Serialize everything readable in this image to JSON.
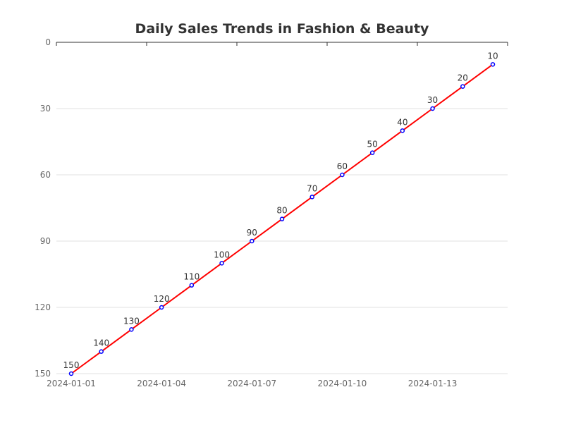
{
  "chart_data": {
    "type": "line",
    "title": "Daily Sales Trends in Fashion & Beauty",
    "xlabel": "",
    "ylabel": "",
    "x": [
      "2024-01-01",
      "2024-01-02",
      "2024-01-03",
      "2024-01-04",
      "2024-01-05",
      "2024-01-06",
      "2024-01-07",
      "2024-01-08",
      "2024-01-09",
      "2024-01-10",
      "2024-01-11",
      "2024-01-12",
      "2024-01-13",
      "2024-01-14",
      "2024-01-15"
    ],
    "x_tick_labels": [
      "2024-01-01",
      "2024-01-04",
      "2024-01-07",
      "2024-01-10",
      "2024-01-13"
    ],
    "series": [
      {
        "values": [
          150,
          140,
          130,
          120,
          110,
          100,
          90,
          80,
          70,
          60,
          50,
          40,
          30,
          20,
          10
        ]
      }
    ],
    "ylim": [
      0,
      150
    ],
    "y_inverted": true,
    "y_ticks": [
      0,
      30,
      60,
      90,
      120,
      150
    ],
    "grid": "horizontal",
    "legend": "none",
    "line_color": "#ff0000",
    "marker_color": "#0000ff"
  }
}
